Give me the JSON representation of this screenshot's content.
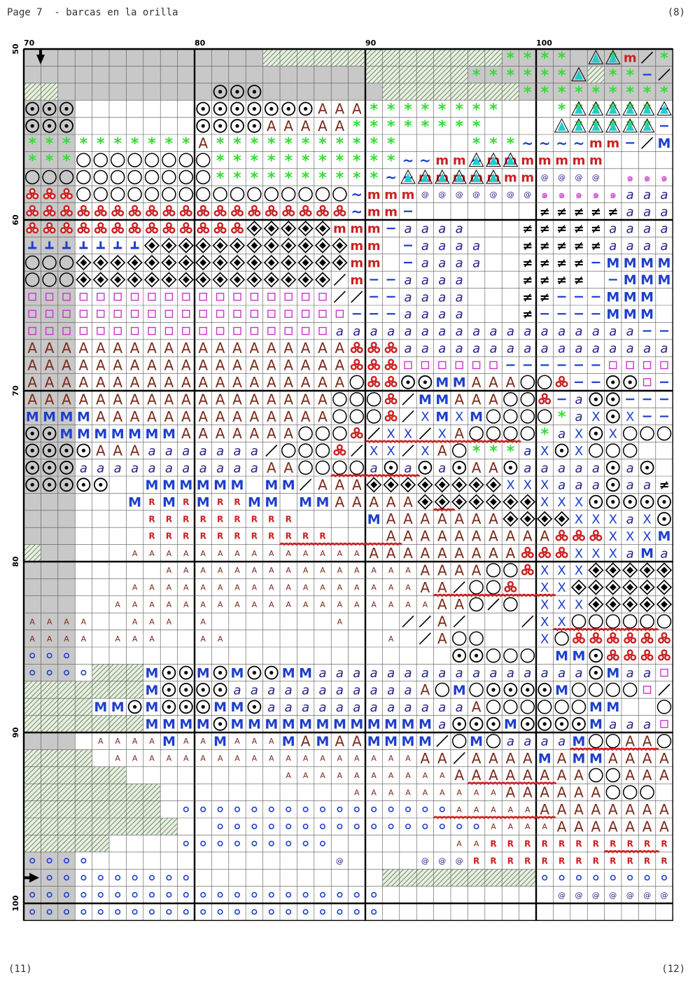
{
  "header": {
    "title": "Page 7  - barcas en la orilla",
    "page_number": "(8)"
  },
  "footer": {
    "left": "(11)",
    "right": "(12)"
  },
  "chart_data": {
    "type": "table",
    "col_start": 70,
    "col_count": 38,
    "row_start": 50,
    "row_count": 51,
    "col_labels": [
      "70",
      "80",
      "90",
      "100"
    ],
    "row_labels": [
      "50",
      "60",
      "70",
      "80",
      "90",
      "100"
    ],
    "colors": {
      "grid_line": "#555555",
      "major_line": "#000000",
      "shade": "#c8c8c8",
      "green": "#33dd33",
      "red": "#cc2222",
      "blue": "#1e3fcc",
      "brown": "#7a2a1a",
      "cyan": "#22cccc",
      "magenta": "#cc33cc",
      "navy": "#222288",
      "hatch": "#6b8a5a"
    },
    "rows": [
      "..............hhhhhhhhhhhhhhgggg..gm/g...ccc.sss",
      "....................hhhhhhgggggg.hgg-/-..cssss.",
      "hh.........ooo.......hhhhhhhhgggggggggg-/-...cc.cc",
      "ooo.......oooooooAAAgggggggg...gggggg--/M...ccccccc",
      "ooo.......ooooAAAAAgggggggg.....ggggg--/M.v.cccccU",
      "ggggggggggAggggggggggg....gggwwwwmm-/M.v.MMMMMMU",
      "gggOOOOOOOOgggggggggggwwmmwmmmmmmm.........aaaaU",
      "OOOOOOOOOOOggggggggggwwmmmmmmmcccc.ssssaaaaaaU",
      "TTTOOOOOOOOOOOOOOOOwmmmcccccccsssssaaaaaaaU",
      "TTTTTTTTTTTTTTTTTTTwmm-.......NNNNNaaaaaaaaU",
      "TTTTTTTTTTTTTDDDDDmmm-aaaa...NNNNNaaaaaaaU",
      "LLLLLLLDDDDDDDDDDDDmm.-aaaa..NNNNNaaaaaaaa",
      "OOODDDDDDDDDDDDDDDDmm.-aaaa..NNNN-MMMMM.",
      "OOODDDDDDDDDDDDDDD/m--aaaa...NNNN.-MMMMM..",
      "qqqqqqqqqqqqqqqqqq//--aaaa...NN---MMM....",
      "qqqqqqqqqqqqqqqqqqq---aaaa...N----MMM..//",
      "qqqqqqqqqqqqqqqqqqaaaaaaaaaaaaaaaaaa--/-",
      "AAAAAAAAAAAAAAAAAAATTTaaaaaaaaaaaaaaaaaaa-a",
      "AAAAAAAAAAAAAAAAAAATTTqqqqqq------qqqqqq.",
      "AAAAAAAAAAAAAAAAAAAOTTooMMAAAOOT--ooq--O",
      "AAAAAAAAAAAAAAAAAAOOOT/MMAAAOOT-aoo----",
      "MMMMAAAAAAAAAAAAAAOOOT/XMXMOOOOgaXoX---",
      "ooMMMMMMMAAAAAAAOOOT/XX/XAOOOOgaXoXOOO",
      "ooooAAAaaaaaaa/OOOT/XX/XAOgggaXoXOOO",
      "oooaaaaaaaaaaaAAOOOOaoaoaoAAoaaaaaoao",
      "ooooo..MMMMMM.MM/AAADDDDDDDDXXXaaaoaaN",
      "......MRMRMRRMM.MMAAAAADDDDDDDXXXoooooog",
      ".......RRRRRRRRR....MAAAAAAADDDDXXXaXoXag",
      ".......RRRRRRRRRRR...AAAAAAAAAATTTXXXMXoaN",
      "h.....rrrrrrrrrrrrrrAAAAAAAAATTTXXXaMaaooN",
      "........rrrrrrrrrrrrrrrAAAAOOTXXXDDDDDDDD",
      "......rrrrrrrrrrrrrrrrrAA/OOT.XXDDDDDDDD",
      ".....rrrrrrrrrrrrrrrrrrrAAO/O.XXXDDDDDDDD",
      "rrrr..rrr.r.......r...//A/.../XXOOOOOOOO",
      "rrrr.rrr..rr.........r./AOO...XOTTTTTTTT",
      "bbb......................ooOOO.MMoTTTTTTT",
      "bbbbhhhMooMoMooMMaaaaaaaaaaaaaaaaoMaaqq.",
      "hhhhhhhMooooaaaaaaaaaaaAOMOooooMOOOOq/",
      "hhhhMMoMoooMMoaaaaaaaaaaaaAOOOOOOMM..OO/",
      "hhhhhhhMMMMoMMMMMMMMMMMMaoooMooooMaaaq/",
      "....rrrrMrrMrrrMAMAAMMMM/OMOaaaaMOOAAO",
      "hhhh.rrrrrrrrrrrrrrrrrrAA/AAAAMAMMAAAAAA",
      "hhhhhh.........rrrrrrrrrrAAAAAAAAOOAAA",
      "hhhhhhhh...........rrrrrrrrrAAAAAAOOO...",
      "hhhhhhhh.bbbbbbbbbbbbbbbbrrrrrAAAAAAAAAAAA",
      "hhhhhhhhh..bbbbbbbbbbbbbbbbrrrrAAAAAAAAAOAAO",
      "hhhhh....bbbbbbbbb.......rrRRRRRRRRRRRRAAA",
      "bbbb..............c....cccRRRRRRRRRRRRRRRRR",
      "bbbbbbbbbb...........hhhhhhhhhbbbbbbbbbbbbb",
      "bbbbbbbbbbbbbbbbbbbbb..........ccccccccccccccc",
      "bbbbbbbbbbbbbbbbbbbbb.................."
    ]
  }
}
